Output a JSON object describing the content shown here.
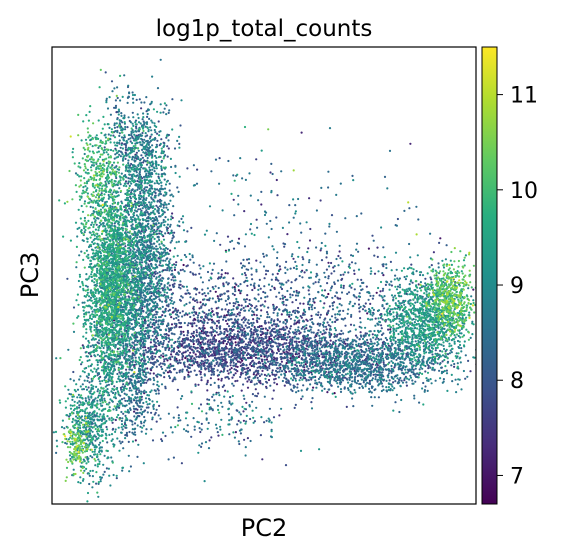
{
  "chart_data": {
    "type": "scatter",
    "title": "log1p_total_counts",
    "xlabel": "PC2",
    "ylabel": "PC3",
    "x_ticks_shown": false,
    "y_ticks_shown": false,
    "grid": false,
    "colormap": "viridis",
    "colorbar": {
      "range": [
        6.7,
        11.5
      ],
      "ticks": [
        7,
        8,
        9,
        10,
        11
      ],
      "tick_labels": [
        "7",
        "8",
        "9",
        "10",
        "11"
      ],
      "placement": "right"
    },
    "xlim": [
      0,
      100
    ],
    "ylim": [
      0,
      100
    ],
    "clusters": [
      {
        "center": [
          14,
          48
        ],
        "spread": [
          3.2,
          12
        ],
        "count": 2600,
        "mean": 9.3,
        "sd": 0.5
      },
      {
        "center": [
          22,
          53
        ],
        "spread": [
          3.5,
          13
        ],
        "count": 1700,
        "mean": 8.6,
        "sd": 0.5
      },
      {
        "center": [
          11,
          72
        ],
        "spread": [
          3.0,
          6
        ],
        "count": 320,
        "mean": 9.9,
        "sd": 0.45
      },
      {
        "center": [
          22,
          76
        ],
        "spread": [
          3.0,
          6
        ],
        "count": 380,
        "mean": 8.7,
        "sd": 0.5
      },
      {
        "center": [
          44,
          34
        ],
        "spread": [
          13,
          3.8
        ],
        "count": 1600,
        "mean": 7.7,
        "sd": 0.45
      },
      {
        "center": [
          72,
          31
        ],
        "spread": [
          11,
          3.2
        ],
        "count": 1400,
        "mean": 8.4,
        "sd": 0.45
      },
      {
        "center": [
          88,
          40
        ],
        "spread": [
          5,
          5
        ],
        "count": 1100,
        "mean": 9.2,
        "sd": 0.4
      },
      {
        "center": [
          94,
          45
        ],
        "spread": [
          2.5,
          3.8
        ],
        "count": 500,
        "mean": 10.2,
        "sd": 0.45
      },
      {
        "center": [
          9,
          17
        ],
        "spread": [
          3.2,
          6
        ],
        "count": 550,
        "mean": 9.0,
        "sd": 0.5
      },
      {
        "center": [
          6,
          13
        ],
        "spread": [
          1.5,
          3
        ],
        "count": 140,
        "mean": 10.4,
        "sd": 0.4
      },
      {
        "center": [
          19,
          25
        ],
        "spread": [
          3,
          6
        ],
        "count": 350,
        "mean": 8.3,
        "sd": 0.5
      },
      {
        "center": [
          40,
          42
        ],
        "spread": [
          14,
          8
        ],
        "count": 700,
        "mean": 7.9,
        "sd": 0.5
      },
      {
        "center": [
          68,
          44
        ],
        "spread": [
          13,
          6
        ],
        "count": 450,
        "mean": 8.2,
        "sd": 0.5
      },
      {
        "center": [
          40,
          18
        ],
        "spread": [
          8,
          4
        ],
        "count": 160,
        "mean": 8.6,
        "sd": 0.6
      },
      {
        "center": [
          17,
          82
        ],
        "spread": [
          2.5,
          5
        ],
        "count": 140,
        "mean": 8.5,
        "sd": 0.5
      },
      {
        "center": [
          52,
          55
        ],
        "spread": [
          18,
          12
        ],
        "count": 260,
        "mean": 8.4,
        "sd": 0.6
      }
    ],
    "outliers": [
      {
        "x": 11.5,
        "y": 95,
        "value": 10.3
      },
      {
        "x": 25,
        "y": 91,
        "value": 8.5
      },
      {
        "x": 51,
        "y": 82,
        "value": 10.5
      },
      {
        "x": 57,
        "y": 73,
        "value": 10.8
      },
      {
        "x": 84,
        "y": 66,
        "value": 11.0
      },
      {
        "x": 63,
        "y": 12,
        "value": 9.2
      },
      {
        "x": 36,
        "y": 5,
        "value": 9.0
      },
      {
        "x": 95,
        "y": 56,
        "value": 10.7
      },
      {
        "x": 86,
        "y": 59,
        "value": 10.9
      }
    ]
  }
}
